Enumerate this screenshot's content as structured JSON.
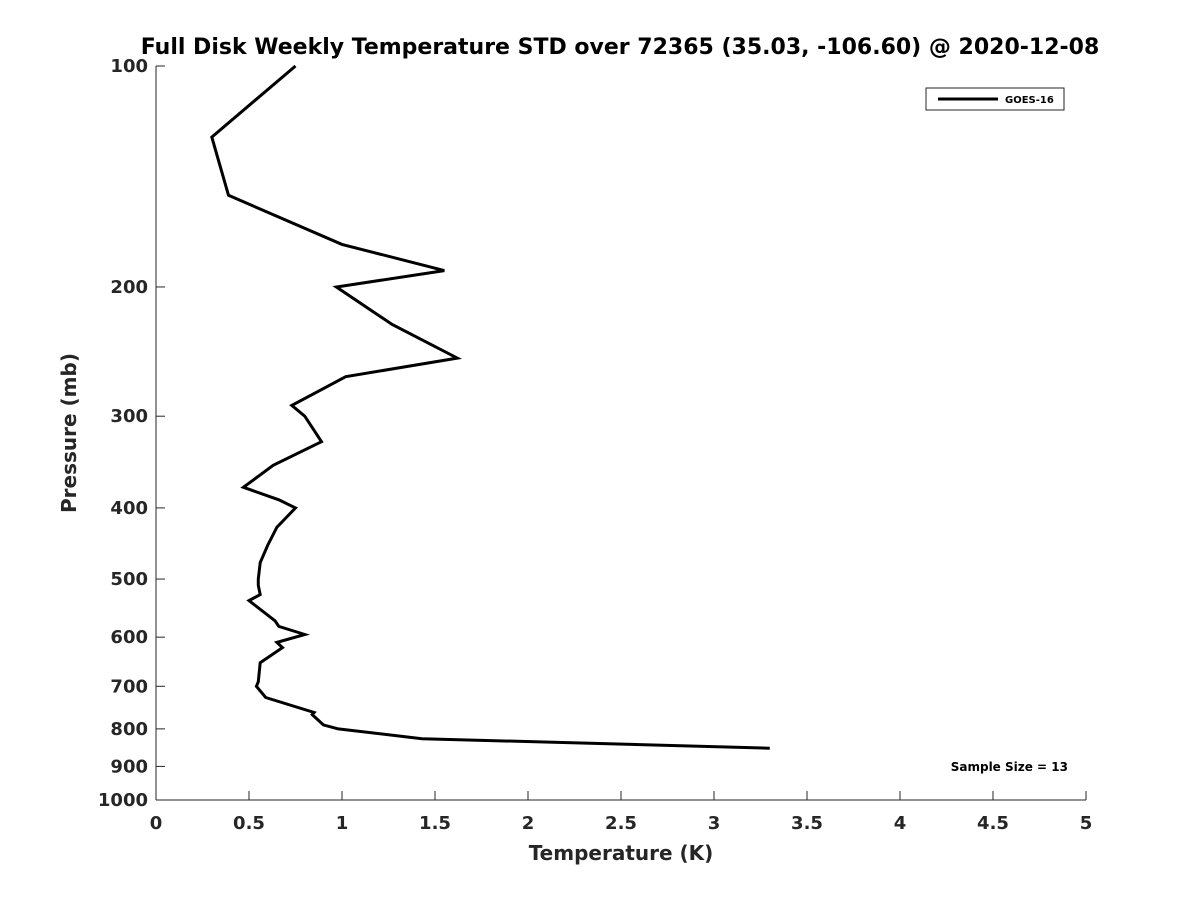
{
  "chart_data": {
    "type": "line",
    "title": "Full Disk Weekly Temperature STD over 72365 (35.03, -106.60) @ 2020-12-08",
    "xlabel": "Temperature (K)",
    "ylabel": "Pressure (mb)",
    "xlim": [
      0,
      5
    ],
    "ylim": [
      1000,
      100
    ],
    "yscale": "log",
    "y_reversed": true,
    "xticks": [
      0,
      0.5,
      1,
      1.5,
      2,
      2.5,
      3,
      3.5,
      4,
      4.5,
      5
    ],
    "xtick_labels": [
      "0",
      "0.5",
      "1",
      "1.5",
      "2",
      "2.5",
      "3",
      "3.5",
      "4",
      "4.5",
      "5"
    ],
    "yticks": [
      100,
      200,
      300,
      400,
      500,
      600,
      700,
      800,
      900,
      1000
    ],
    "ytick_labels": [
      "100",
      "200",
      "300",
      "400",
      "500",
      "600",
      "700",
      "800",
      "900",
      "1000"
    ],
    "grid": false,
    "legend_position": "top-right",
    "series": [
      {
        "name": "GOES-16",
        "color": "#000000",
        "x": [
          0.75,
          0.3,
          0.39,
          1.0,
          1.55,
          0.97,
          1.27,
          1.62,
          1.02,
          0.73,
          0.8,
          0.89,
          0.63,
          0.47,
          0.66,
          0.75,
          0.65,
          0.6,
          0.56,
          0.55,
          0.55,
          0.56,
          0.5,
          0.64,
          0.66,
          0.8,
          0.65,
          0.68,
          0.56,
          0.55,
          0.54,
          0.59,
          0.85,
          0.84,
          0.9,
          0.98,
          1.43,
          3.3
        ],
        "y": [
          100,
          125,
          150,
          175,
          190,
          200,
          225,
          250,
          265,
          290,
          300,
          325,
          350,
          375,
          390,
          400,
          425,
          450,
          475,
          500,
          510,
          525,
          535,
          570,
          580,
          595,
          610,
          620,
          650,
          690,
          700,
          725,
          760,
          765,
          790,
          800,
          825,
          850
        ]
      }
    ],
    "annotation": "Sample Size = 13"
  }
}
